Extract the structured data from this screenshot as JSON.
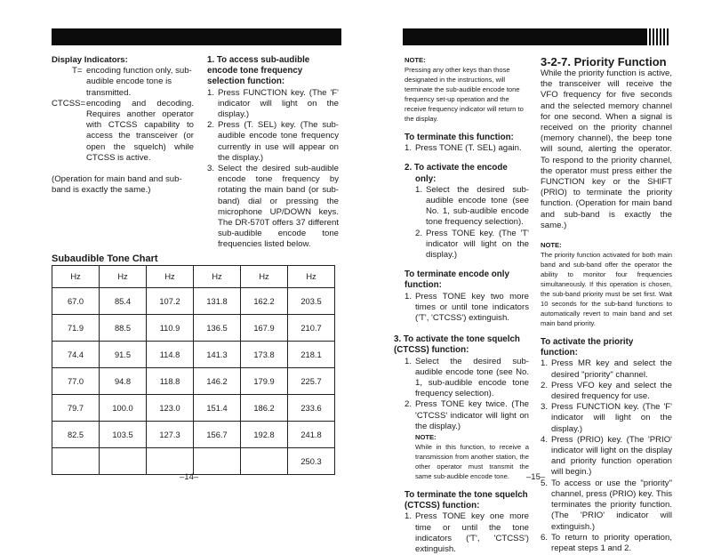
{
  "left_page": {
    "display_indicators": {
      "heading": "Display Indicators:",
      "t_key": "T=",
      "t_desc": "encoding function only, sub-audible encode tone is transmitted.",
      "ctcss_key": "CTCSS=",
      "ctcss_desc": "encoding and decoding. Requires another operator with CTCSS capability to access the transceiver (or open the squelch) while CTCSS is active.",
      "note": "(Operation for main band and sub-band is exactly the same.)"
    },
    "step1": {
      "heading": "1. To access sub-audible encode tone frequency selection function:",
      "items": [
        "Press FUNCTION key. (The 'F' indicator will light on the display.)",
        "Press (T. SEL) key. (The sub-audible encode tone frequency currently in use will appear on the display.)",
        "Select the desired sub-audible encode tone frequency by rotating the main band (or sub-band) dial or pressing the microphone UP/DOWN keys. The DR-570T offers 37 different sub-audible encode tone frequencies listed below."
      ]
    },
    "chart_title": "Subaudible Tone Chart",
    "table": {
      "headers": [
        "Hz",
        "Hz",
        "Hz",
        "Hz",
        "Hz",
        "Hz"
      ],
      "rows": [
        [
          "67.0",
          "85.4",
          "107.2",
          "131.8",
          "162.2",
          "203.5"
        ],
        [
          "71.9",
          "88.5",
          "110.9",
          "136.5",
          "167.9",
          "210.7"
        ],
        [
          "74.4",
          "91.5",
          "114.8",
          "141.3",
          "173.8",
          "218.1"
        ],
        [
          "77.0",
          "94.8",
          "118.8",
          "146.2",
          "179.9",
          "225.7"
        ],
        [
          "79.7",
          "100.0",
          "123.0",
          "151.4",
          "186.2",
          "233.6"
        ],
        [
          "82.5",
          "103.5",
          "127.3",
          "156.7",
          "192.8",
          "241.8"
        ],
        [
          "",
          "",
          "",
          "",
          "",
          "250.3"
        ]
      ]
    },
    "page_number": "–14–"
  },
  "right_page": {
    "note1_label": "NOTE:",
    "note1": "Pressing any other keys than those designated in the instructions, will terminate the sub-audible encode tone frequency set-up operation and the receive frequency indicator will return to the display.",
    "terminate1_heading": "To terminate this function:",
    "terminate1_items": [
      "Press TONE (T. SEL) again."
    ],
    "step2_heading": "2. To activate the encode only:",
    "step2_items": [
      "Select the desired sub-audible encode tone (see No. 1, sub-audible encode tone frequency selection).",
      "Press TONE key. (The 'T' indicator will light on the display.)"
    ],
    "terminate2_heading": "To terminate encode only function:",
    "terminate2_items": [
      "Press TONE key two more times or until tone indicators ('T', 'CTCSS') extinguish."
    ],
    "step3_heading": "3. To activate the tone squelch (CTCSS) function:",
    "step3_items": [
      "Select the desired sub-audible encode tone (see No. 1, sub-audible encode tone frequency selection).",
      "Press TONE key twice. (The 'CTCSS' indicator will light on the display.)"
    ],
    "note2_label": "NOTE:",
    "note2": "While in this function, to receive a transmission from another station, the other operator must transmit the same sub-audible encode tone.",
    "terminate3_heading": "To terminate the tone squelch (CTCSS) function:",
    "terminate3_items": [
      "Press TONE key one more time or until the tone indicators ('T', 'CTCSS') extinguish."
    ],
    "priority": {
      "heading": "3-2-7. Priority Function",
      "body": "While the priority function is active, the transceiver will receive the VFO frequency for five seconds and the selected memory channel for one second. When a signal is received on the priority channel (memory channel), the beep tone will sound, alerting the operator. To respond to the priority channel, the operator must press either the FUNCTION key or the SHIFT (PRIO) to terminate the priority function. (Operation for main band and sub-band is exactly the same.)",
      "note_label": "NOTE:",
      "note": "The priority function activated for both main band and sub-band offer the operator the ability to monitor four frequencies simultaneously. If this operation is chosen, the sub-band priority must be set first. Wait 10 seconds for the sub-band functions to automatically revert to main band and set main band priority.",
      "activate_heading": "To activate the priority function:",
      "activate_items": [
        "Press MR key and select the desired \"priority\" channel.",
        "Press VFO key and select the desired frequency for use.",
        "Press FUNCTION key. (The 'F' indicator will light on the display.)",
        "Press (PRIO) key. (The 'PRIO' indicator will light on the display and priority function operation will begin.)",
        "To access or use the \"priority\" channel, press (PRIO) key. This terminates the priority function. (The 'PRIO' indicator will extinguish.)",
        "To return to priority operation, repeat steps 1 and 2."
      ]
    },
    "page_number": "–15–"
  }
}
